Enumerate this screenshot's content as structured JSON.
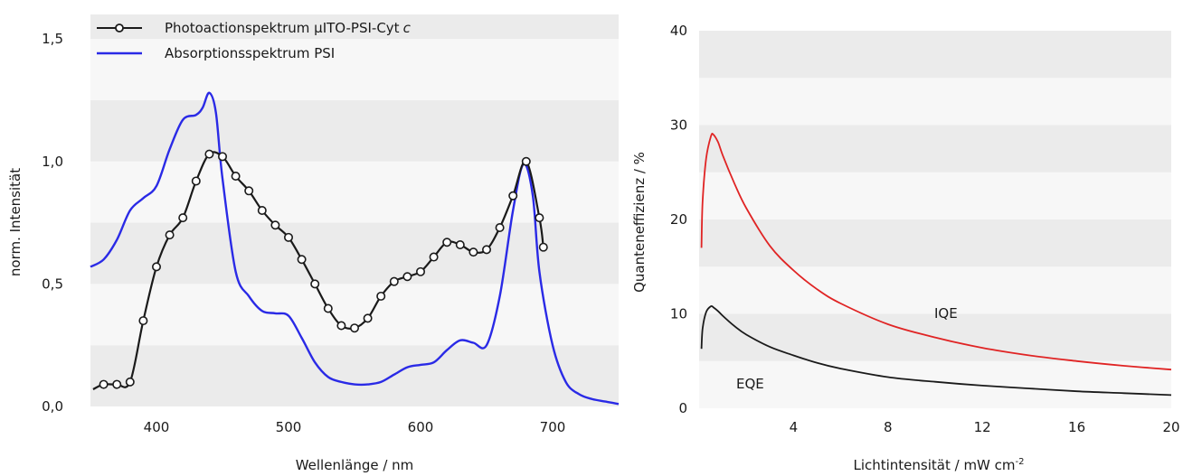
{
  "chart_data": [
    {
      "type": "line",
      "xlabel": "Wellenlänge / nm",
      "ylabel": "norm. Intensität",
      "xlim": [
        350,
        750
      ],
      "ylim": [
        0.0,
        1.6
      ],
      "x_ticks": [
        400,
        500,
        600,
        700
      ],
      "x_tick_labels": [
        "400",
        "500",
        "600",
        "700"
      ],
      "y_ticks": [
        0.0,
        0.5,
        1.0,
        1.5
      ],
      "y_tick_labels": [
        "0,0",
        "0,5",
        "1,0",
        "1,5"
      ],
      "grid": "alternating horizontal bands",
      "legend_position": "top-left",
      "series": [
        {
          "name": "Photoactionspektrum µITO-PSI-Cyt",
          "name_italic_suffix": "c",
          "color": "#1a1a1a",
          "marker": "open-circle",
          "x": [
            352,
            360,
            370,
            380,
            390,
            400,
            410,
            420,
            430,
            440,
            450,
            460,
            470,
            480,
            490,
            500,
            510,
            520,
            530,
            540,
            550,
            560,
            570,
            580,
            590,
            600,
            610,
            620,
            630,
            640,
            650,
            660,
            670,
            680,
            690,
            693
          ],
          "y": [
            0.07,
            0.09,
            0.09,
            0.1,
            0.35,
            0.57,
            0.7,
            0.77,
            0.92,
            1.03,
            1.02,
            0.94,
            0.88,
            0.8,
            0.74,
            0.69,
            0.6,
            0.5,
            0.4,
            0.33,
            0.32,
            0.36,
            0.45,
            0.51,
            0.53,
            0.55,
            0.61,
            0.67,
            0.66,
            0.63,
            0.64,
            0.73,
            0.86,
            1.0,
            0.77,
            0.65
          ]
        },
        {
          "name": "Absorptionsspektrum PSI",
          "color": "#2a2ae6",
          "marker": "none",
          "x": [
            350,
            360,
            370,
            380,
            390,
            400,
            410,
            420,
            430,
            435,
            440,
            445,
            450,
            460,
            470,
            480,
            490,
            500,
            510,
            520,
            530,
            540,
            550,
            560,
            570,
            580,
            590,
            600,
            610,
            620,
            630,
            640,
            650,
            660,
            670,
            678,
            685,
            690,
            700,
            710,
            720,
            730,
            740,
            750
          ],
          "y": [
            0.57,
            0.6,
            0.68,
            0.8,
            0.85,
            0.9,
            1.05,
            1.17,
            1.19,
            1.22,
            1.28,
            1.2,
            0.93,
            0.55,
            0.45,
            0.39,
            0.38,
            0.37,
            0.28,
            0.18,
            0.12,
            0.1,
            0.09,
            0.09,
            0.1,
            0.13,
            0.16,
            0.17,
            0.18,
            0.23,
            0.27,
            0.26,
            0.25,
            0.45,
            0.8,
            0.99,
            0.86,
            0.55,
            0.25,
            0.1,
            0.05,
            0.03,
            0.02,
            0.01
          ]
        }
      ]
    },
    {
      "type": "line",
      "xlabel": "Lichtintensität / mW cm",
      "xlabel_superscript": "-2",
      "ylabel": "Quanteneffizienz / %",
      "xlim": [
        0,
        20
      ],
      "ylim": [
        0,
        40
      ],
      "x_ticks": [
        4,
        8,
        12,
        16,
        20
      ],
      "x_tick_labels": [
        "4",
        "8",
        "12",
        "16",
        "20"
      ],
      "y_ticks": [
        0,
        10,
        20,
        30,
        40
      ],
      "y_tick_labels": [
        "0",
        "10",
        "20",
        "30",
        "40"
      ],
      "grid": "alternating horizontal bands",
      "annotations": [
        {
          "text": "IQE",
          "x": 11.5,
          "y": 10
        },
        {
          "text": "EQE",
          "x": 1.8,
          "y": 2.5
        }
      ],
      "series": [
        {
          "label": "IQE",
          "color": "#e02424",
          "x": [
            0.1,
            0.15,
            0.3,
            0.5,
            0.6,
            0.8,
            1.0,
            1.5,
            2.0,
            3.0,
            4.0,
            5.0,
            6.0,
            8.0,
            10.0,
            12.0,
            14.0,
            16.0,
            18.0,
            20.0
          ],
          "y": [
            17.0,
            22.0,
            26.5,
            28.8,
            29.0,
            28.2,
            26.8,
            23.8,
            21.2,
            17.2,
            14.6,
            12.6,
            11.1,
            8.9,
            7.5,
            6.4,
            5.6,
            5.0,
            4.5,
            4.1
          ]
        },
        {
          "label": "EQE",
          "color": "#1a1a1a",
          "x": [
            0.1,
            0.15,
            0.3,
            0.5,
            0.6,
            0.8,
            1.0,
            1.5,
            2.0,
            3.0,
            4.0,
            5.0,
            6.0,
            8.0,
            10.0,
            12.0,
            14.0,
            16.0,
            18.0,
            20.0
          ],
          "y": [
            6.3,
            8.5,
            10.2,
            10.8,
            10.7,
            10.3,
            9.8,
            8.7,
            7.8,
            6.5,
            5.6,
            4.8,
            4.2,
            3.3,
            2.8,
            2.4,
            2.1,
            1.8,
            1.6,
            1.4
          ]
        }
      ]
    }
  ]
}
